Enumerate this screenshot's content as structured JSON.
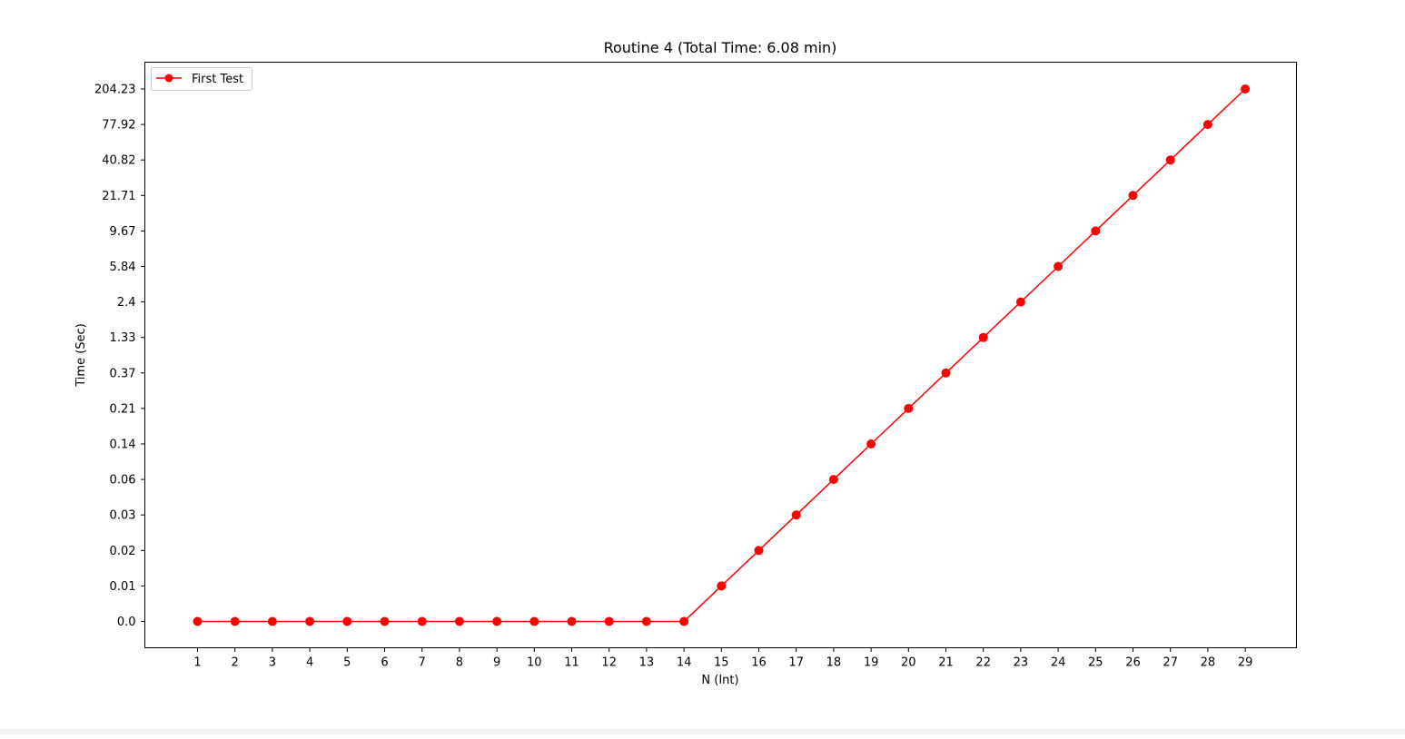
{
  "chart_data": {
    "type": "line",
    "title": "Routine 4 (Total Time: 6.08 min)",
    "xlabel": "N (Int)",
    "ylabel": "Time (Sec)",
    "x": [
      1,
      2,
      3,
      4,
      5,
      6,
      7,
      8,
      9,
      10,
      11,
      12,
      13,
      14,
      15,
      16,
      17,
      18,
      19,
      20,
      21,
      22,
      23,
      24,
      25,
      26,
      27,
      28,
      29
    ],
    "x_tick_labels": [
      "1",
      "2",
      "3",
      "4",
      "5",
      "6",
      "7",
      "8",
      "9",
      "10",
      "11",
      "12",
      "13",
      "14",
      "15",
      "16",
      "17",
      "18",
      "19",
      "20",
      "21",
      "22",
      "23",
      "24",
      "25",
      "26",
      "27",
      "28",
      "29"
    ],
    "y_axis_scale": "categorical",
    "y_tick_labels": [
      "0.0",
      "0.01",
      "0.02",
      "0.03",
      "0.06",
      "0.14",
      "0.21",
      "0.37",
      "1.33",
      "2.4",
      "5.84",
      "9.67",
      "21.71",
      "40.82",
      "77.92",
      "204.23"
    ],
    "series": [
      {
        "name": "First Test",
        "color": "#ff0000",
        "marker": "circle",
        "values": [
          "0.0",
          "0.0",
          "0.0",
          "0.0",
          "0.0",
          "0.0",
          "0.0",
          "0.0",
          "0.0",
          "0.0",
          "0.0",
          "0.0",
          "0.0",
          "0.0",
          "0.01",
          "0.02",
          "0.03",
          "0.06",
          "0.14",
          "0.21",
          "0.37",
          "1.33",
          "2.4",
          "5.84",
          "9.67",
          "21.71",
          "40.82",
          "77.92",
          "204.23"
        ]
      }
    ],
    "legend_position": "top-left",
    "grid": false
  }
}
